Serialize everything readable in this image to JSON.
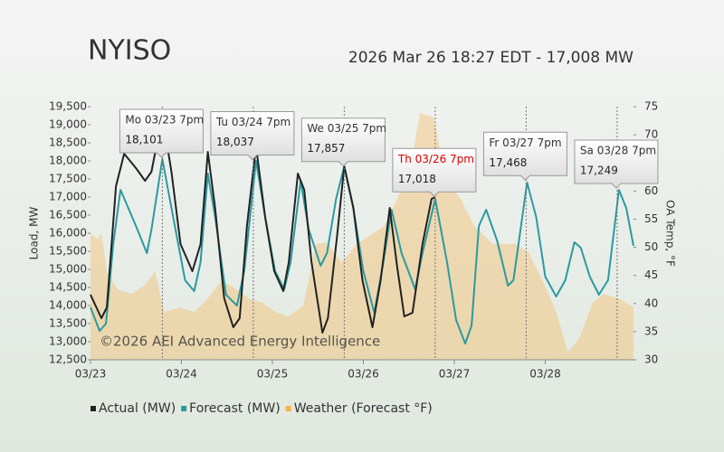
{
  "chart_data": {
    "type": "line",
    "title": "NYISO",
    "subtitle": "2026 Mar 26 18:27 EDT - 17,008 MW",
    "watermark": "©2026 AEI Advanced Energy Intelligence",
    "y_label": "Load, MW",
    "y2_label": "OA Temp, °F",
    "xlim": [
      0,
      5.97
    ],
    "xticks": [
      {
        "value": 0,
        "label": "03/23"
      },
      {
        "value": 1,
        "label": "03/24"
      },
      {
        "value": 2,
        "label": "03/25"
      },
      {
        "value": 3,
        "label": "03/26"
      },
      {
        "value": 4,
        "label": "03/27"
      },
      {
        "value": 5,
        "label": "03/28"
      }
    ],
    "ylim": [
      12500,
      19500
    ],
    "yticks": [
      {
        "value": 12500,
        "label": "12,500"
      },
      {
        "value": 13000,
        "label": "13,000"
      },
      {
        "value": 13500,
        "label": "13,500"
      },
      {
        "value": 14000,
        "label": "14,000"
      },
      {
        "value": 14500,
        "label": "14,500"
      },
      {
        "value": 15000,
        "label": "15,000"
      },
      {
        "value": 15500,
        "label": "15,500"
      },
      {
        "value": 16000,
        "label": "16,000"
      },
      {
        "value": 16500,
        "label": "16,500"
      },
      {
        "value": 17000,
        "label": "17,000"
      },
      {
        "value": 17500,
        "label": "17,500"
      },
      {
        "value": 18000,
        "label": "18,000"
      },
      {
        "value": 18500,
        "label": "18,500"
      },
      {
        "value": 19000,
        "label": "19,000"
      },
      {
        "value": 19500,
        "label": "19,500"
      }
    ],
    "y2lim": [
      30,
      75
    ],
    "y2ticks": [
      30,
      35,
      40,
      45,
      50,
      55,
      60,
      65,
      70,
      75
    ],
    "series": [
      {
        "name": "Weather (Forecast °F)",
        "color": "#f7b24a",
        "type": "area",
        "axis": "y2",
        "x": [
          0,
          0.08,
          0.12,
          0.18,
          0.3,
          0.45,
          0.6,
          0.71,
          0.81,
          0.99,
          1.14,
          1.29,
          1.44,
          1.61,
          1.74,
          1.89,
          2.04,
          2.17,
          2.34,
          2.48,
          2.6,
          2.76,
          2.93,
          3.08,
          3.23,
          3.37,
          3.52,
          3.62,
          3.77,
          3.92,
          4.07,
          4.22,
          4.42,
          4.57,
          4.67,
          4.82,
          4.97,
          5.12,
          5.25,
          5.37,
          5.52,
          5.64,
          5.81,
          5.97
        ],
        "values": [
          52.5,
          51.4,
          52.5,
          45.7,
          42.5,
          41.7,
          43.3,
          45.7,
          38.5,
          39.3,
          38.5,
          40.9,
          44.1,
          42.5,
          40.9,
          40.1,
          38.5,
          37.7,
          39.6,
          50.6,
          50.9,
          47.3,
          50.6,
          52.2,
          53.8,
          58.6,
          64.2,
          73.9,
          73.1,
          61.8,
          58.6,
          53.8,
          50.6,
          50.6,
          50.6,
          49.0,
          44.1,
          38.5,
          31.3,
          33.7,
          40.1,
          41.7,
          40.9,
          39.3
        ]
      },
      {
        "name": "Forecast (MW)",
        "color": "#2b9aa0",
        "type": "line",
        "x": [
          0,
          0.1,
          0.17,
          0.25,
          0.33,
          0.5,
          0.62,
          0.67,
          0.79,
          0.89,
          1.04,
          1.14,
          1.21,
          1.29,
          1.37,
          1.49,
          1.61,
          1.69,
          1.82,
          1.92,
          2.03,
          2.13,
          2.2,
          2.31,
          2.4,
          2.53,
          2.6,
          2.7,
          2.79,
          2.89,
          3.0,
          3.12,
          3.22,
          3.31,
          3.42,
          3.57,
          3.65,
          3.79,
          3.92,
          4.02,
          4.12,
          4.19,
          4.27,
          4.35,
          4.47,
          4.59,
          4.65,
          4.8,
          4.9,
          5.0,
          5.12,
          5.22,
          5.32,
          5.39,
          5.49,
          5.59,
          5.69,
          5.81,
          5.89,
          5.97
        ],
        "values": [
          13950,
          13300,
          13500,
          15700,
          17200,
          16200,
          15450,
          16100,
          18050,
          16700,
          14700,
          14400,
          15200,
          17650,
          16450,
          14300,
          14000,
          14950,
          18000,
          16450,
          14950,
          14450,
          15200,
          17450,
          16100,
          15100,
          15450,
          16950,
          17850,
          16700,
          14950,
          13800,
          15200,
          16650,
          15450,
          14450,
          15450,
          16950,
          15200,
          13600,
          12950,
          13450,
          16200,
          16650,
          15800,
          14550,
          14700,
          17400,
          16450,
          14800,
          14250,
          14700,
          15750,
          15600,
          14800,
          14300,
          14700,
          17200,
          16700,
          15650
        ]
      },
      {
        "name": "Actual (MW)",
        "color": "#222222",
        "type": "line",
        "x": [
          0,
          0.12,
          0.18,
          0.28,
          0.37,
          0.5,
          0.6,
          0.67,
          0.79,
          0.89,
          0.99,
          1.12,
          1.21,
          1.29,
          1.37,
          1.47,
          1.57,
          1.64,
          1.72,
          1.82,
          1.92,
          2.02,
          2.12,
          2.18,
          2.28,
          2.35,
          2.43,
          2.55,
          2.61,
          2.71,
          2.79,
          2.89,
          2.99,
          3.1,
          3.19,
          3.29,
          3.37,
          3.45,
          3.54,
          3.65,
          3.75,
          3.79
        ],
        "values": [
          14300,
          13650,
          13950,
          17300,
          18200,
          17800,
          17450,
          17700,
          19250,
          17700,
          15700,
          14950,
          15700,
          18250,
          16700,
          14200,
          13400,
          13650,
          16200,
          18400,
          16450,
          14950,
          14400,
          15200,
          17650,
          17200,
          15200,
          13250,
          13650,
          15900,
          17850,
          16700,
          14700,
          13400,
          14700,
          16700,
          15100,
          13700,
          13800,
          15700,
          16950,
          17000
        ]
      }
    ],
    "legend_order": [
      2,
      1,
      0
    ],
    "annotations": [
      {
        "text": "Mo 03/23 7pm",
        "x": 0.79,
        "value": 18101,
        "value_label": "18,101",
        "color": "#333333"
      },
      {
        "text": "Tu 03/24 7pm",
        "x": 1.79,
        "value": 18037,
        "value_label": "18,037",
        "color": "#333333"
      },
      {
        "text": "We 03/25 7pm",
        "x": 2.79,
        "value": 17857,
        "value_label": "17,857",
        "color": "#333333"
      },
      {
        "text": "Th 03/26 7pm",
        "x": 3.79,
        "value": 17018,
        "value_label": "17,018",
        "color": "#dd0000"
      },
      {
        "text": "Fr 03/27 7pm",
        "x": 4.79,
        "value": 17468,
        "value_label": "17,468",
        "color": "#333333"
      },
      {
        "text": "Sa 03/28 7pm",
        "x": 5.79,
        "value": 17249,
        "value_label": "17,249",
        "color": "#333333"
      }
    ]
  }
}
